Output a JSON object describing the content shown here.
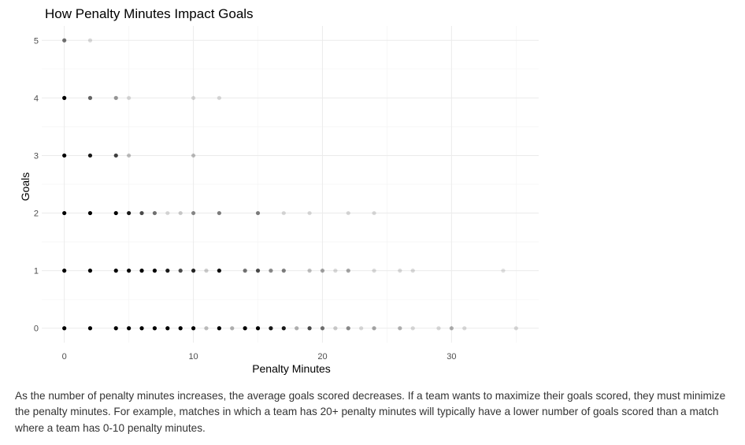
{
  "chart_data": {
    "type": "scatter",
    "title": "How Penalty Minutes Impact Goals",
    "xlabel": "Penalty Minutes",
    "ylabel": "Goals",
    "xlim": [
      -1.75,
      36.75
    ],
    "ylim": [
      -0.25,
      5.25
    ],
    "x_ticks": [
      0,
      10,
      20,
      30
    ],
    "x_minor_ticks": [
      5,
      15,
      25,
      35
    ],
    "y_ticks": [
      0,
      1,
      2,
      3,
      4,
      5
    ],
    "grid": true,
    "point_color": "#000000",
    "series": [
      {
        "points": [
          {
            "x": 0,
            "y": 5,
            "alpha": 0.55
          },
          {
            "x": 2,
            "y": 5,
            "alpha": 0.15
          },
          {
            "x": 0,
            "y": 4,
            "alpha": 1
          },
          {
            "x": 2,
            "y": 4,
            "alpha": 0.6
          },
          {
            "x": 4,
            "y": 4,
            "alpha": 0.4
          },
          {
            "x": 5,
            "y": 4,
            "alpha": 0.15
          },
          {
            "x": 10,
            "y": 4,
            "alpha": 0.15
          },
          {
            "x": 12,
            "y": 4,
            "alpha": 0.15
          },
          {
            "x": 0,
            "y": 3,
            "alpha": 1
          },
          {
            "x": 2,
            "y": 3,
            "alpha": 0.9
          },
          {
            "x": 4,
            "y": 3,
            "alpha": 0.75
          },
          {
            "x": 5,
            "y": 3,
            "alpha": 0.25
          },
          {
            "x": 10,
            "y": 3,
            "alpha": 0.25
          },
          {
            "x": 0,
            "y": 2,
            "alpha": 1
          },
          {
            "x": 2,
            "y": 2,
            "alpha": 1
          },
          {
            "x": 4,
            "y": 2,
            "alpha": 1
          },
          {
            "x": 5,
            "y": 2,
            "alpha": 0.9
          },
          {
            "x": 6,
            "y": 2,
            "alpha": 0.7
          },
          {
            "x": 7,
            "y": 2,
            "alpha": 0.55
          },
          {
            "x": 8,
            "y": 2,
            "alpha": 0.15
          },
          {
            "x": 9,
            "y": 2,
            "alpha": 0.2
          },
          {
            "x": 10,
            "y": 2,
            "alpha": 0.45
          },
          {
            "x": 12,
            "y": 2,
            "alpha": 0.5
          },
          {
            "x": 15,
            "y": 2,
            "alpha": 0.5
          },
          {
            "x": 17,
            "y": 2,
            "alpha": 0.15
          },
          {
            "x": 19,
            "y": 2,
            "alpha": 0.15
          },
          {
            "x": 22,
            "y": 2,
            "alpha": 0.15
          },
          {
            "x": 24,
            "y": 2,
            "alpha": 0.15
          },
          {
            "x": 0,
            "y": 1,
            "alpha": 1
          },
          {
            "x": 2,
            "y": 1,
            "alpha": 1
          },
          {
            "x": 4,
            "y": 1,
            "alpha": 1
          },
          {
            "x": 5,
            "y": 1,
            "alpha": 1
          },
          {
            "x": 6,
            "y": 1,
            "alpha": 1
          },
          {
            "x": 7,
            "y": 1,
            "alpha": 1
          },
          {
            "x": 8,
            "y": 1,
            "alpha": 0.9
          },
          {
            "x": 9,
            "y": 1,
            "alpha": 0.7
          },
          {
            "x": 10,
            "y": 1,
            "alpha": 0.85
          },
          {
            "x": 11,
            "y": 1,
            "alpha": 0.2
          },
          {
            "x": 12,
            "y": 1,
            "alpha": 0.95
          },
          {
            "x": 14,
            "y": 1,
            "alpha": 0.55
          },
          {
            "x": 15,
            "y": 1,
            "alpha": 0.7
          },
          {
            "x": 16,
            "y": 1,
            "alpha": 0.45
          },
          {
            "x": 17,
            "y": 1,
            "alpha": 0.5
          },
          {
            "x": 19,
            "y": 1,
            "alpha": 0.25
          },
          {
            "x": 20,
            "y": 1,
            "alpha": 0.35
          },
          {
            "x": 21,
            "y": 1,
            "alpha": 0.15
          },
          {
            "x": 22,
            "y": 1,
            "alpha": 0.35
          },
          {
            "x": 24,
            "y": 1,
            "alpha": 0.15
          },
          {
            "x": 26,
            "y": 1,
            "alpha": 0.15
          },
          {
            "x": 27,
            "y": 1,
            "alpha": 0.15
          },
          {
            "x": 34,
            "y": 1,
            "alpha": 0.12
          },
          {
            "x": 0,
            "y": 0,
            "alpha": 1
          },
          {
            "x": 2,
            "y": 0,
            "alpha": 1
          },
          {
            "x": 4,
            "y": 0,
            "alpha": 1
          },
          {
            "x": 5,
            "y": 0,
            "alpha": 1
          },
          {
            "x": 6,
            "y": 0,
            "alpha": 1
          },
          {
            "x": 7,
            "y": 0,
            "alpha": 1
          },
          {
            "x": 8,
            "y": 0,
            "alpha": 1
          },
          {
            "x": 9,
            "y": 0,
            "alpha": 1
          },
          {
            "x": 10,
            "y": 0,
            "alpha": 1
          },
          {
            "x": 11,
            "y": 0,
            "alpha": 0.25
          },
          {
            "x": 12,
            "y": 0,
            "alpha": 1
          },
          {
            "x": 13,
            "y": 0,
            "alpha": 0.3
          },
          {
            "x": 14,
            "y": 0,
            "alpha": 1
          },
          {
            "x": 15,
            "y": 0,
            "alpha": 1
          },
          {
            "x": 16,
            "y": 0,
            "alpha": 0.9
          },
          {
            "x": 17,
            "y": 0,
            "alpha": 0.9
          },
          {
            "x": 18,
            "y": 0,
            "alpha": 0.3
          },
          {
            "x": 19,
            "y": 0,
            "alpha": 0.7
          },
          {
            "x": 20,
            "y": 0,
            "alpha": 0.55
          },
          {
            "x": 21,
            "y": 0,
            "alpha": 0.2
          },
          {
            "x": 22,
            "y": 0,
            "alpha": 0.45
          },
          {
            "x": 23,
            "y": 0,
            "alpha": 0.15
          },
          {
            "x": 24,
            "y": 0,
            "alpha": 0.35
          },
          {
            "x": 26,
            "y": 0,
            "alpha": 0.3
          },
          {
            "x": 27,
            "y": 0,
            "alpha": 0.15
          },
          {
            "x": 29,
            "y": 0,
            "alpha": 0.15
          },
          {
            "x": 30,
            "y": 0,
            "alpha": 0.3
          },
          {
            "x": 31,
            "y": 0,
            "alpha": 0.15
          },
          {
            "x": 35,
            "y": 0,
            "alpha": 0.15
          }
        ]
      }
    ]
  },
  "caption": "As the number of penalty minutes increases, the average goals scored decreases. If a team wants to maximize their goals scored, they must minimize the penalty minutes. For example, matches in which a team has 20+ penalty minutes will typically have a lower number of goals scored than a match where a team has 0-10 penalty minutes."
}
